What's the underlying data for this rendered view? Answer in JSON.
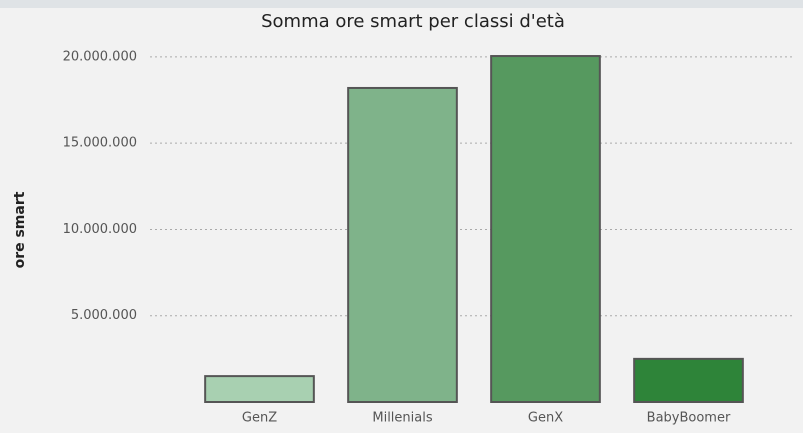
{
  "chart_data": {
    "type": "bar",
    "title": "Somma ore smart per classi d'età",
    "y_label": "ore smart",
    "categories": [
      "GenZ",
      "Millenials",
      "GenX",
      "BabyBoomer"
    ],
    "values": [
      1500000,
      18200000,
      20050000,
      2500000
    ],
    "colors": [
      "#a8d0b1",
      "#7fb38a",
      "#56995f",
      "#2e8439"
    ],
    "ylim": [
      0,
      20400000
    ],
    "yticks": [
      {
        "value": 5000000,
        "label": "5.000.000"
      },
      {
        "value": 10000000,
        "label": "10.000.000"
      },
      {
        "value": 15000000,
        "label": "15.000.000"
      },
      {
        "value": 20000000,
        "label": "20.000.000"
      }
    ],
    "grid": true
  }
}
